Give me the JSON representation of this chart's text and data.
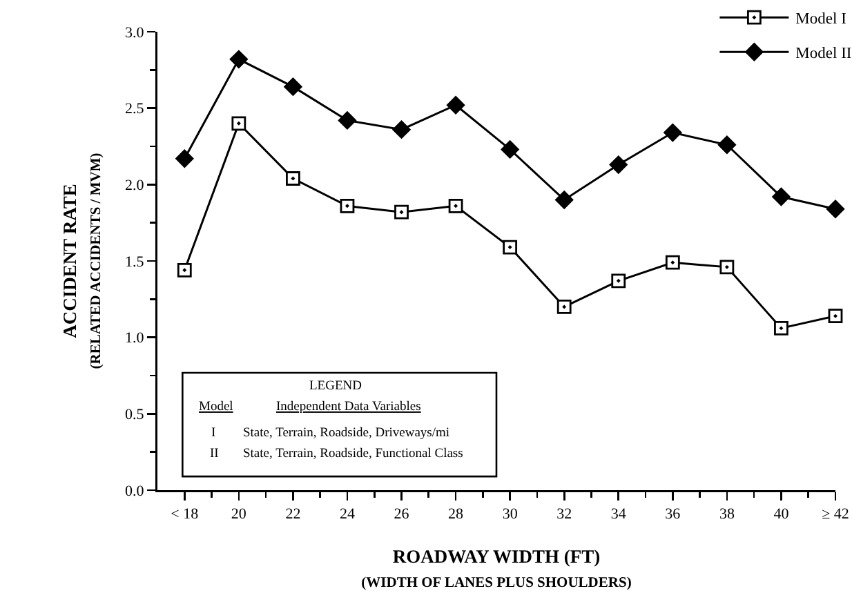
{
  "chart_data": {
    "type": "line",
    "xlabel": "ROADWAY WIDTH (FT)\n(WIDTH OF LANES PLUS SHOULDERS)",
    "ylabel": "ACCIDENT RATE\n(RELATED ACCIDENTS / MVM)",
    "categories": [
      "< 18",
      "20",
      "22",
      "24",
      "26",
      "28",
      "30",
      "32",
      "34",
      "36",
      "38",
      "40",
      "≥ 42"
    ],
    "series": [
      {
        "name": "Model I",
        "color": "#000000",
        "marker": "square",
        "values": [
          1.44,
          2.4,
          2.04,
          1.86,
          1.82,
          1.86,
          1.59,
          1.2,
          1.37,
          1.49,
          1.46,
          1.06,
          1.14
        ]
      },
      {
        "name": "Model II",
        "color": "#000000",
        "marker": "diamond",
        "values": [
          2.17,
          2.82,
          2.64,
          2.42,
          2.36,
          2.52,
          2.23,
          1.9,
          2.13,
          2.34,
          2.26,
          1.92,
          1.84
        ]
      }
    ],
    "ylim": [
      0,
      3
    ],
    "yticks": [
      {
        "value": 0,
        "label": "0.0"
      },
      {
        "value": 0.25,
        "label": null
      },
      {
        "value": 0.5,
        "label": "0.5"
      },
      {
        "value": 0.75,
        "label": null
      },
      {
        "value": 1,
        "label": "1.0"
      },
      {
        "value": 1.25,
        "label": null
      },
      {
        "value": 1.5,
        "label": "1.5"
      },
      {
        "value": 1.75,
        "label": null
      },
      {
        "value": 2,
        "label": "2.0"
      },
      {
        "value": 2.25,
        "label": null
      },
      {
        "value": 2.5,
        "label": "2.5"
      },
      {
        "value": 2.75,
        "label": null
      },
      {
        "value": 3,
        "label": "3.0"
      }
    ],
    "grid": false,
    "legend": "top right",
    "line_style": "solid",
    "annotations": [
      "LEGEND",
      "Model",
      "Independent Data Variables",
      "I",
      "State, Terrain, Roadside, Driveways/mi",
      "II",
      "State, Terrain, Roadside, Functional Class"
    ]
  }
}
